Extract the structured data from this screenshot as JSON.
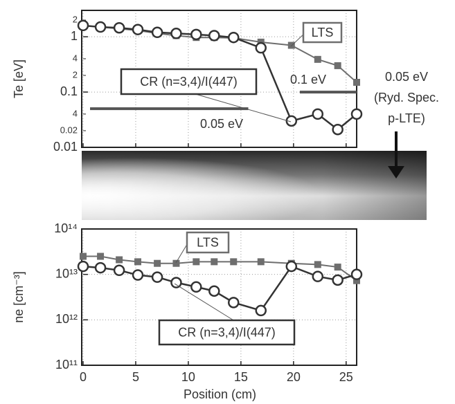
{
  "chart_data": [
    {
      "type": "line",
      "ylabel": "Te [eV]",
      "ylog": true,
      "grid": true,
      "xtick_labels": false,
      "x": [
        0,
        1.65,
        3.43,
        5.2,
        7.05,
        8.85,
        10.75,
        12.46,
        14.3,
        16.9,
        19.8,
        22.3,
        24.2,
        26.0
      ],
      "xlim": [
        0,
        26
      ],
      "xticks": [
        0,
        5,
        10,
        15,
        20,
        25
      ],
      "ylim": [
        0.01,
        3
      ],
      "yticks": [
        0.01,
        0.1,
        1
      ],
      "yminor_ticks": [
        0.02,
        {
          "value": 0.04,
          "label": "4"
        },
        {
          "value": 0.2,
          "label": "2"
        },
        {
          "value": 0.4,
          "label": "4"
        },
        2
      ],
      "series": [
        {
          "name": "LTS",
          "color": "#6e6e6e",
          "marker": "square",
          "values": [
            1.6,
            1.5,
            1.4,
            1.3,
            1.15,
            1.05,
            0.97,
            0.97,
            0.95,
            0.8,
            0.7,
            0.39,
            0.3,
            0.15
          ]
        },
        {
          "name": "CR (n=3,4)/I(447)",
          "color": "#333333",
          "marker": "circle",
          "values": [
            1.6,
            1.5,
            1.45,
            1.35,
            1.2,
            1.15,
            1.1,
            1.05,
            0.97,
            0.63,
            0.03,
            0.04,
            0.021,
            0.04
          ]
        }
      ],
      "reference_lines": [
        {
          "value": 0.05,
          "label": "0.05 eV",
          "x": [
            0.66,
            15.7
          ]
        },
        {
          "value": 0.1,
          "label": "0.1 eV",
          "x": [
            20.6,
            26
          ]
        }
      ],
      "side_note": [
        "0.05 eV",
        "(Ryd. Spec.",
        "p-LTE)"
      ]
    },
    {
      "type": "line",
      "ylabel": "ne [cm⁻³]",
      "xlabel": "Position (cm)",
      "ylog": true,
      "grid": true,
      "xtick_labels": true,
      "x": [
        0,
        1.65,
        3.43,
        5.2,
        7.05,
        8.85,
        10.75,
        12.46,
        14.3,
        16.9,
        19.8,
        22.3,
        24.2,
        26.0
      ],
      "xlim": [
        0,
        26
      ],
      "xticks": [
        0,
        5,
        10,
        15,
        20,
        25
      ],
      "ylim": [
        100000000000.0,
        100000000000000.0
      ],
      "yticks": [
        {
          "value": 100000000000.0,
          "label": "10¹¹"
        },
        {
          "value": 1000000000000.0,
          "label": "10¹²"
        },
        {
          "value": 10000000000000.0,
          "label": "10¹³"
        },
        {
          "value": 100000000000000.0,
          "label": "10¹⁴"
        }
      ],
      "series": [
        {
          "name": "LTS",
          "color": "#6e6e6e",
          "marker": "square",
          "values": [
            25000000000000.0,
            25000000000000.0,
            21000000000000.0,
            19000000000000.0,
            17500000000000.0,
            17500000000000.0,
            19000000000000.0,
            19000000000000.0,
            19000000000000.0,
            19000000000000.0,
            17500000000000.0,
            16500000000000.0,
            14500000000000.0,
            7300000000000.0
          ]
        },
        {
          "name": "CR (n=3,4)/I(447)",
          "color": "#333333",
          "marker": "circle",
          "values": [
            15000000000000.0,
            14000000000000.0,
            12300000000000.0,
            9700000000000.0,
            8700000000000.0,
            6600000000000.0,
            5300000000000.0,
            4300000000000.0,
            2400000000000.0,
            1600000000000.0,
            15000000000000.0,
            9000000000000.0,
            7500000000000.0,
            10000000000000.0
          ]
        }
      ]
    }
  ]
}
